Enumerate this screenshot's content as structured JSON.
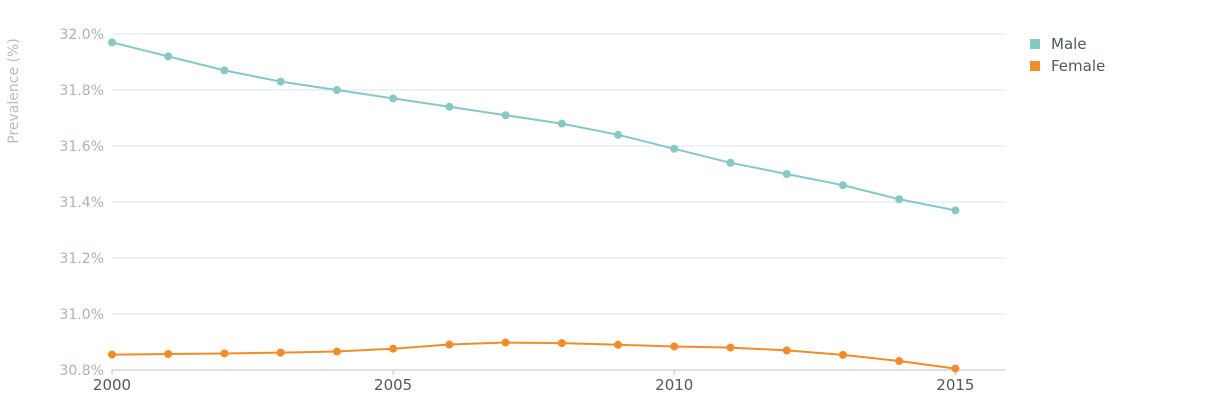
{
  "chart_data": {
    "type": "line",
    "title": "",
    "xlabel": "",
    "ylabel": "Prevalence (%)",
    "x": [
      2000,
      2001,
      2002,
      2003,
      2004,
      2005,
      2006,
      2007,
      2008,
      2009,
      2010,
      2011,
      2012,
      2013,
      2014,
      2015
    ],
    "x_ticks": [
      "2000",
      "2005",
      "2010",
      "2015"
    ],
    "y_ticks": [
      "32.0%",
      "31.8%",
      "31.6%",
      "31.4%",
      "31.2%",
      "31.0%",
      "30.8%"
    ],
    "ylim": [
      30.8,
      32.0
    ],
    "xlim": [
      2000,
      2015.9
    ],
    "grid": "horizontal",
    "legend_position": "right",
    "series": [
      {
        "name": "Male",
        "color": "#86c8c6",
        "values": [
          31.97,
          31.92,
          31.87,
          31.83,
          31.8,
          31.77,
          31.74,
          31.71,
          31.68,
          31.64,
          31.59,
          31.54,
          31.5,
          31.46,
          31.41,
          31.37
        ]
      },
      {
        "name": "Female",
        "color": "#f28c28",
        "values": [
          30.855,
          30.857,
          30.859,
          30.862,
          30.866,
          30.876,
          30.891,
          30.898,
          30.896,
          30.89,
          30.884,
          30.88,
          30.87,
          30.854,
          30.832,
          30.805
        ]
      }
    ]
  }
}
